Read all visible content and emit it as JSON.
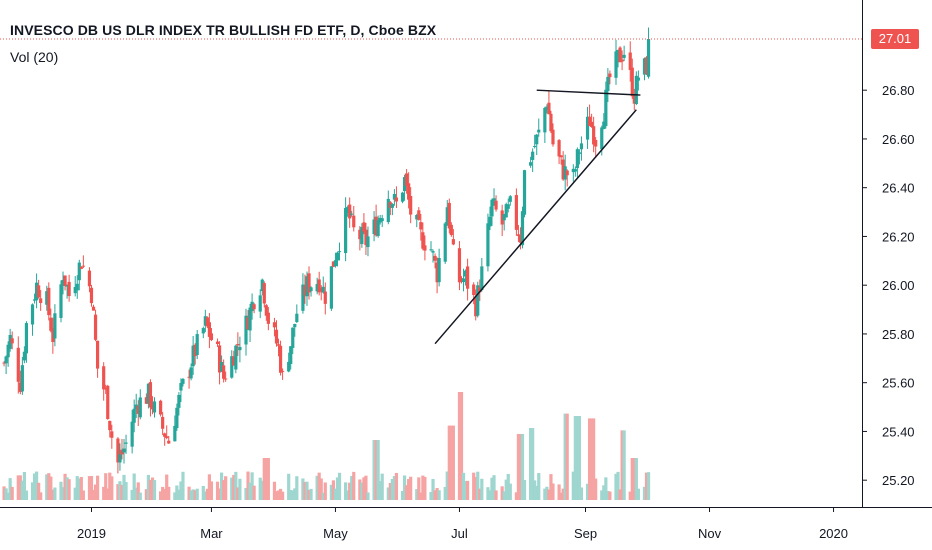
{
  "header": {
    "title": "INVESCO DB US DLR INDEX TR BULLISH FD ETF, D, Cboe BZX",
    "volume_indicator": "Vol (20)"
  },
  "last_price": "27.01",
  "colors": {
    "up": "#26a69a",
    "down": "#ef5350",
    "volume_up": "#9fd6cf",
    "volume_down": "#f5a4a3",
    "trendline": "#131722",
    "price_line": "#ef5350",
    "axis_text": "#131722",
    "axis_line": "#131722"
  },
  "chart_data": {
    "type": "candlestick",
    "grid": false,
    "y_axis_position": "right",
    "ylim": [
      25.09,
      27.17
    ],
    "yticks": [
      "25.20",
      "25.40",
      "25.60",
      "25.80",
      "26.00",
      "26.20",
      "26.40",
      "26.60",
      "26.80",
      "27.01"
    ],
    "xlim": [
      "2018-11-17",
      "2020-01-15"
    ],
    "xticks": [
      {
        "date": "2019-01-01",
        "label": "2019"
      },
      {
        "date": "2019-03-01",
        "label": "Mar"
      },
      {
        "date": "2019-05-01",
        "label": "May"
      },
      {
        "date": "2019-07-01",
        "label": "Jul"
      },
      {
        "date": "2019-09-01",
        "label": "Sep"
      },
      {
        "date": "2019-11-01",
        "label": "Nov"
      },
      {
        "date": "2020-01-01",
        "label": "2020"
      }
    ],
    "price_series_anchors": [
      {
        "date": "2018-11-19",
        "close": 25.68
      },
      {
        "date": "2018-11-22",
        "close": 25.78
      },
      {
        "date": "2018-11-27",
        "close": 25.6
      },
      {
        "date": "2018-11-30",
        "close": 25.84
      },
      {
        "date": "2018-12-05",
        "close": 26.0
      },
      {
        "date": "2018-12-10",
        "close": 25.93
      },
      {
        "date": "2018-12-13",
        "close": 25.79
      },
      {
        "date": "2018-12-18",
        "close": 26.05
      },
      {
        "date": "2018-12-21",
        "close": 25.96
      },
      {
        "date": "2018-12-27",
        "close": 26.1
      },
      {
        "date": "2019-01-01",
        "close": 25.97
      },
      {
        "date": "2019-01-04",
        "close": 25.66
      },
      {
        "date": "2019-01-08",
        "close": 25.55
      },
      {
        "date": "2019-01-11",
        "close": 25.38
      },
      {
        "date": "2019-01-14",
        "close": 25.27
      },
      {
        "date": "2019-01-18",
        "close": 25.35
      },
      {
        "date": "2019-01-23",
        "close": 25.51
      },
      {
        "date": "2019-01-29",
        "close": 25.55
      },
      {
        "date": "2019-02-04",
        "close": 25.43
      },
      {
        "date": "2019-02-08",
        "close": 25.36
      },
      {
        "date": "2019-02-14",
        "close": 25.56
      },
      {
        "date": "2019-02-20",
        "close": 25.71
      },
      {
        "date": "2019-02-26",
        "close": 25.84
      },
      {
        "date": "2019-03-04",
        "close": 25.72
      },
      {
        "date": "2019-03-07",
        "close": 25.62
      },
      {
        "date": "2019-03-12",
        "close": 25.72
      },
      {
        "date": "2019-03-18",
        "close": 25.84
      },
      {
        "date": "2019-03-22",
        "close": 25.95
      },
      {
        "date": "2019-03-26",
        "close": 26.02
      },
      {
        "date": "2019-03-29",
        "close": 25.86
      },
      {
        "date": "2019-04-03",
        "close": 25.74
      },
      {
        "date": "2019-04-05",
        "close": 25.62
      },
      {
        "date": "2019-04-09",
        "close": 25.76
      },
      {
        "date": "2019-04-12",
        "close": 25.89
      },
      {
        "date": "2019-04-17",
        "close": 26.0
      },
      {
        "date": "2019-04-23",
        "close": 26.02
      },
      {
        "date": "2019-04-26",
        "close": 25.96
      },
      {
        "date": "2019-05-01",
        "close": 26.13
      },
      {
        "date": "2019-05-07",
        "close": 26.3
      },
      {
        "date": "2019-05-10",
        "close": 26.22
      },
      {
        "date": "2019-05-16",
        "close": 26.18
      },
      {
        "date": "2019-05-21",
        "close": 26.25
      },
      {
        "date": "2019-05-27",
        "close": 26.37
      },
      {
        "date": "2019-05-31",
        "close": 26.33
      },
      {
        "date": "2019-06-04",
        "close": 26.43
      },
      {
        "date": "2019-06-07",
        "close": 26.3
      },
      {
        "date": "2019-06-12",
        "close": 26.2
      },
      {
        "date": "2019-06-17",
        "close": 26.15
      },
      {
        "date": "2019-06-20",
        "close": 26.05
      },
      {
        "date": "2019-06-25",
        "close": 26.33
      },
      {
        "date": "2019-06-28",
        "close": 26.12
      },
      {
        "date": "2019-07-01",
        "close": 26.02
      },
      {
        "date": "2019-07-04",
        "close": 26.03
      },
      {
        "date": "2019-07-09",
        "close": 25.92
      },
      {
        "date": "2019-07-12",
        "close": 26.05
      },
      {
        "date": "2019-07-17",
        "close": 26.33
      },
      {
        "date": "2019-07-22",
        "close": 26.25
      },
      {
        "date": "2019-07-26",
        "close": 26.32
      },
      {
        "date": "2019-07-31",
        "close": 26.2
      },
      {
        "date": "2019-08-02",
        "close": 26.46
      },
      {
        "date": "2019-08-06",
        "close": 26.55
      },
      {
        "date": "2019-08-09",
        "close": 26.62
      },
      {
        "date": "2019-08-13",
        "close": 26.76
      },
      {
        "date": "2019-08-16",
        "close": 26.58
      },
      {
        "date": "2019-08-21",
        "close": 26.47
      },
      {
        "date": "2019-08-26",
        "close": 26.44
      },
      {
        "date": "2019-08-29",
        "close": 26.56
      },
      {
        "date": "2019-09-03",
        "close": 26.68
      },
      {
        "date": "2019-09-06",
        "close": 26.6
      },
      {
        "date": "2019-09-10",
        "close": 26.72
      },
      {
        "date": "2019-09-13",
        "close": 26.85
      },
      {
        "date": "2019-09-17",
        "close": 26.93
      },
      {
        "date": "2019-09-20",
        "close": 26.96
      },
      {
        "date": "2019-09-25",
        "close": 26.78
      },
      {
        "date": "2019-09-27",
        "close": 26.86
      },
      {
        "date": "2019-10-01",
        "close": 26.9
      },
      {
        "date": "2019-10-02",
        "close": 27.01
      }
    ],
    "volume": {
      "name": "Vol (20)",
      "spikes": [
        {
          "date": "2019-03-28",
          "relative": 0.35
        },
        {
          "date": "2019-05-21",
          "relative": 0.5
        },
        {
          "date": "2019-06-27",
          "relative": 0.62
        },
        {
          "date": "2019-07-01",
          "relative": 0.9
        },
        {
          "date": "2019-07-31",
          "relative": 0.55
        },
        {
          "date": "2019-08-05",
          "relative": 0.6
        },
        {
          "date": "2019-08-23",
          "relative": 0.72
        },
        {
          "date": "2019-08-28",
          "relative": 0.7
        },
        {
          "date": "2019-09-04",
          "relative": 0.68
        },
        {
          "date": "2019-09-20",
          "relative": 0.58
        },
        {
          "date": "2019-09-25",
          "relative": 0.35
        }
      ]
    },
    "drawings": [
      {
        "type": "trendline",
        "from": {
          "date": "2019-06-19",
          "value": 25.76
        },
        "to": {
          "date": "2019-09-26",
          "value": 26.72
        }
      },
      {
        "type": "horizontal_segment",
        "from": {
          "date": "2019-08-08",
          "value": 26.8
        },
        "to": {
          "date": "2019-09-28",
          "value": 26.78
        }
      }
    ]
  }
}
